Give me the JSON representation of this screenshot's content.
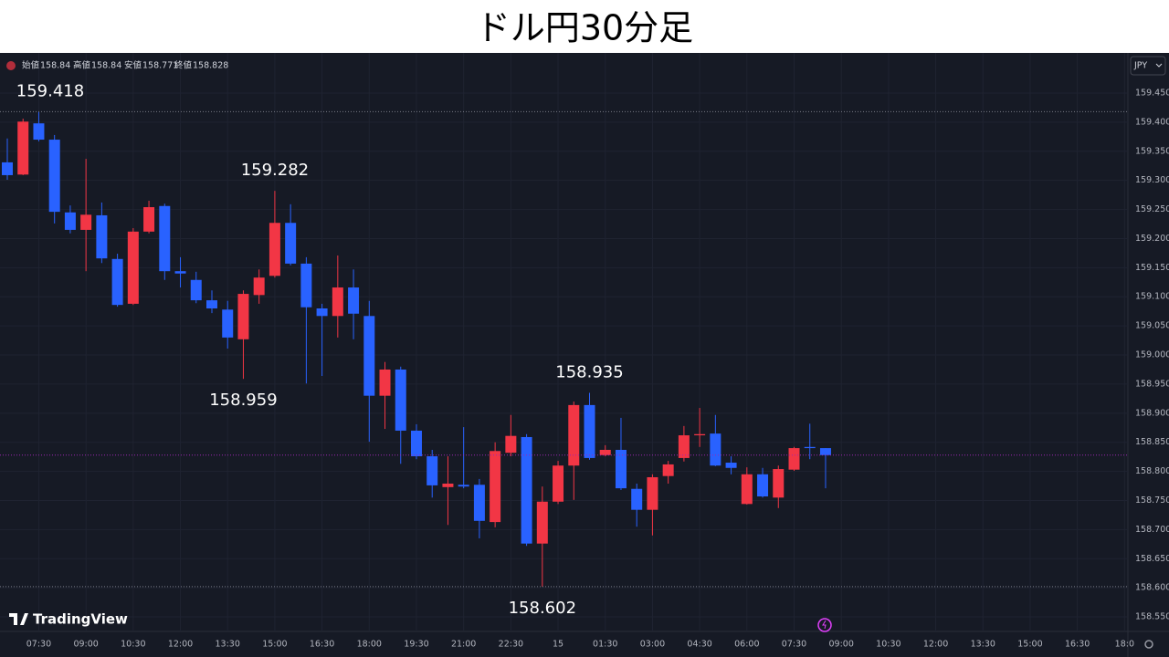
{
  "chart_data": {
    "type": "candlestick",
    "title": "ドル円30分足",
    "ohlc_labels": [
      "始値",
      "高値",
      "安値",
      "終値"
    ],
    "watermark": "TradingView",
    "currency": "JPY",
    "up_color": "#f23645",
    "down_color": "#2962ff",
    "grid": true,
    "categories": [
      null,
      null,
      "07:30",
      null,
      null,
      "09:00",
      null,
      null,
      "10:30",
      null,
      null,
      "12:00",
      null,
      null,
      "13:30",
      null,
      null,
      "15:00",
      null,
      null,
      "16:30",
      null,
      null,
      "18:00",
      null,
      null,
      "19:30",
      null,
      null,
      "21:00",
      null,
      null,
      "22:30",
      null,
      null,
      "15",
      null,
      null,
      "01:30",
      null,
      null,
      "03:00",
      null,
      null,
      "04:30",
      null,
      null,
      "06:00",
      null,
      null,
      "07:30",
      null,
      null,
      "09:00",
      null,
      null,
      "10:30",
      null,
      null,
      "12:00",
      null,
      null,
      "13:30",
      null,
      null,
      "15:00",
      null,
      null,
      "16:30",
      null,
      null,
      "18:0"
    ],
    "open": [
      159.331,
      159.31,
      159.398,
      159.37,
      159.245,
      159.215,
      159.24,
      159.165,
      159.088,
      159.212,
      159.256,
      159.144,
      159.129,
      159.094,
      159.078,
      159.027,
      159.103,
      159.136,
      159.227,
      159.157,
      159.08,
      159.067,
      159.116,
      159.067,
      158.93,
      158.975,
      158.87,
      158.826,
      158.773,
      158.777,
      158.777,
      158.713,
      158.832,
      158.859,
      158.676,
      158.748,
      158.81,
      158.914,
      158.828,
      158.837,
      158.77,
      158.734,
      158.792,
      158.823,
      158.862,
      158.865,
      158.815,
      158.744,
      158.795,
      158.755,
      158.803,
      158.842,
      158.84,
      null,
      null,
      null,
      null,
      null,
      null,
      null,
      null,
      null,
      null,
      null,
      null,
      null,
      null,
      null,
      null,
      null,
      null,
      null
    ],
    "high": [
      159.372,
      159.406,
      159.418,
      159.378,
      159.257,
      159.337,
      159.262,
      159.174,
      159.218,
      159.265,
      159.26,
      159.168,
      159.143,
      159.111,
      159.093,
      159.111,
      159.147,
      159.282,
      159.259,
      159.168,
      159.088,
      159.171,
      159.147,
      159.093,
      158.988,
      158.98,
      158.881,
      158.837,
      158.826,
      158.876,
      158.787,
      158.85,
      158.897,
      158.864,
      158.774,
      158.818,
      158.92,
      158.935,
      158.845,
      158.892,
      158.779,
      158.795,
      158.818,
      158.878,
      158.909,
      158.897,
      158.826,
      158.807,
      158.806,
      158.81,
      158.842,
      158.882,
      158.84,
      null,
      null,
      null,
      null,
      null,
      null,
      null,
      null,
      null,
      null,
      null,
      null,
      null,
      null,
      null,
      null,
      null,
      null,
      null
    ],
    "low": [
      159.301,
      159.309,
      159.367,
      159.226,
      159.209,
      159.144,
      159.158,
      159.083,
      159.086,
      159.209,
      159.129,
      159.116,
      159.089,
      159.072,
      159.011,
      158.959,
      159.088,
      159.133,
      159.154,
      158.951,
      158.964,
      159.03,
      159.027,
      158.851,
      158.873,
      158.813,
      158.821,
      158.755,
      158.708,
      158.771,
      158.685,
      158.704,
      158.826,
      158.672,
      158.602,
      158.744,
      158.751,
      158.82,
      158.826,
      158.768,
      158.705,
      158.69,
      158.779,
      158.817,
      158.842,
      158.809,
      158.795,
      158.743,
      158.755,
      158.737,
      158.801,
      158.821,
      158.771,
      null,
      null,
      null,
      null,
      null,
      null,
      null,
      null,
      null,
      null,
      null,
      null,
      null,
      null,
      null,
      null,
      null,
      null,
      null
    ],
    "close": [
      159.309,
      159.401,
      159.37,
      159.246,
      159.215,
      159.241,
      159.166,
      159.086,
      159.212,
      159.254,
      159.144,
      159.14,
      159.094,
      159.08,
      159.03,
      159.105,
      159.133,
      159.227,
      159.157,
      159.082,
      159.067,
      159.116,
      159.071,
      158.93,
      158.975,
      158.87,
      158.826,
      158.776,
      158.779,
      158.774,
      158.715,
      158.835,
      158.861,
      158.676,
      158.748,
      158.81,
      158.914,
      158.823,
      158.837,
      158.771,
      158.734,
      158.79,
      158.812,
      158.862,
      158.864,
      158.81,
      158.806,
      158.795,
      158.757,
      158.804,
      158.84,
      158.84,
      158.828,
      null,
      null,
      null,
      null,
      null,
      null,
      null,
      null,
      null,
      null,
      null,
      null,
      null,
      null,
      null,
      null,
      null,
      null,
      null
    ],
    "annotations": [
      159.418,
      159.282,
      158.959,
      158.935,
      158.602
    ],
    "ylim": [
      158.525,
      159.519
    ],
    "yticks": [
      {
        "value": 159.45,
        "label": "159.450"
      },
      {
        "value": 159.4,
        "label": "159.400"
      },
      {
        "value": 159.35,
        "label": "159.350"
      },
      {
        "value": 159.3,
        "label": "159.300"
      },
      {
        "value": 159.25,
        "label": "159.250"
      },
      {
        "value": 159.2,
        "label": "159.200"
      },
      {
        "value": 159.15,
        "label": "159.150"
      },
      {
        "value": 159.1,
        "label": "159.100"
      },
      {
        "value": 159.05,
        "label": "159.050"
      },
      {
        "value": 159.0,
        "label": "159.000"
      },
      {
        "value": 158.95,
        "label": "158.950"
      },
      {
        "value": 158.9,
        "label": "158.900"
      },
      {
        "value": 158.85,
        "label": "158.850"
      },
      {
        "value": 158.8,
        "label": "158.800"
      },
      {
        "value": 158.75,
        "label": "158.750"
      },
      {
        "value": 158.7,
        "label": "158.700"
      },
      {
        "value": 158.65,
        "label": "158.650"
      },
      {
        "value": 158.6,
        "label": "158.600"
      },
      {
        "value": 158.55,
        "label": "158.550"
      }
    ]
  }
}
